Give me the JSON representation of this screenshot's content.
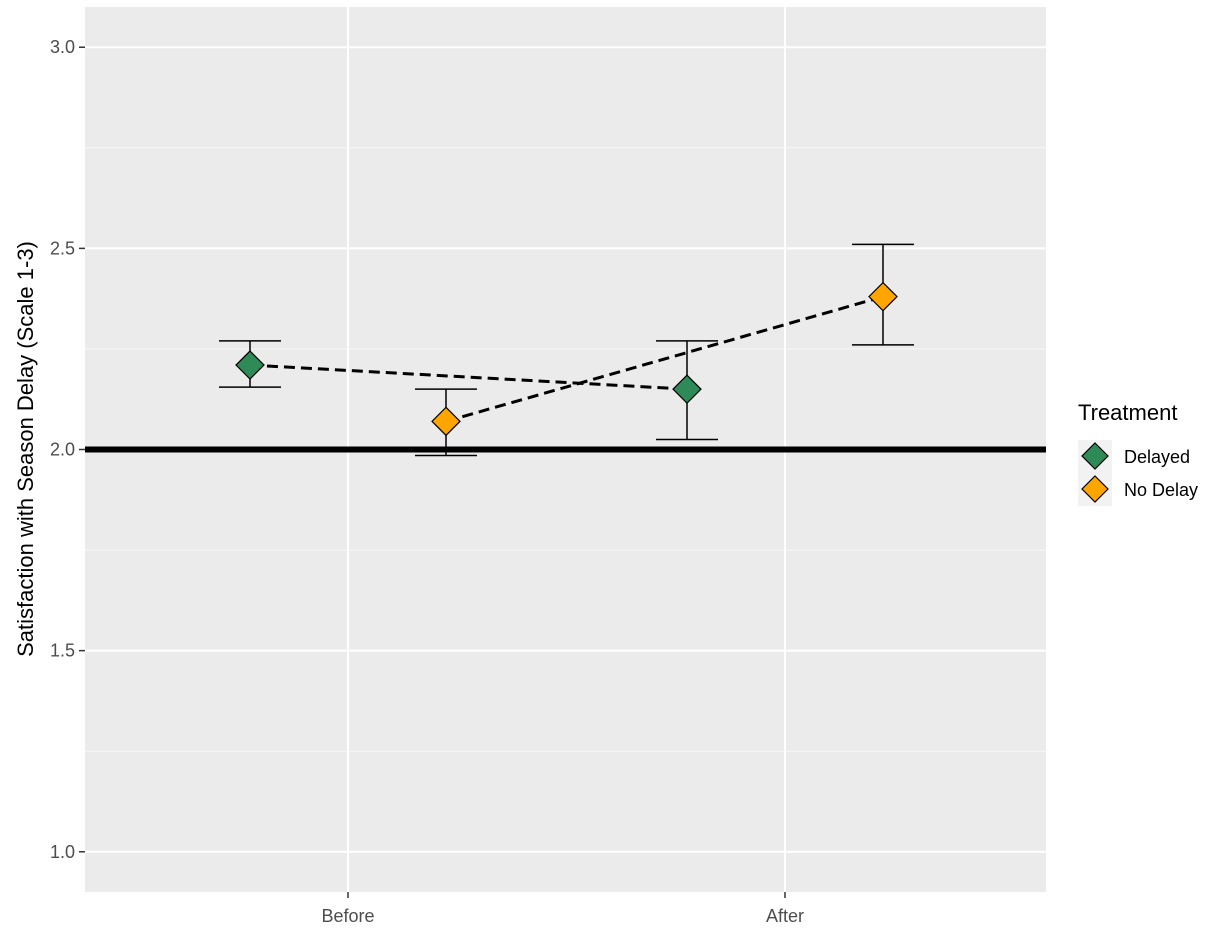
{
  "chart_data": {
    "type": "scatter",
    "title": "",
    "xlabel": "",
    "ylabel": "Satisfaction with Season Delay (Scale 1-3)",
    "categories": [
      "Before",
      "After"
    ],
    "y_ticks": [
      "1.0",
      "1.5",
      "2.0",
      "2.5",
      "3.0"
    ],
    "ylim": [
      0.9,
      3.1
    ],
    "grid": true,
    "reference_line": 2.0,
    "legend": {
      "title": "Treatment",
      "position": "right"
    },
    "series": [
      {
        "name": "Delayed",
        "color": "#2e8b57",
        "values": [
          2.21,
          2.15
        ],
        "error_low": [
          2.155,
          2.025
        ],
        "error_high": [
          2.27,
          2.27
        ]
      },
      {
        "name": "No Delay",
        "color": "#ffa500",
        "values": [
          2.07,
          2.38
        ],
        "error_low": [
          1.985,
          2.26
        ],
        "error_high": [
          2.15,
          2.51
        ]
      }
    ]
  }
}
